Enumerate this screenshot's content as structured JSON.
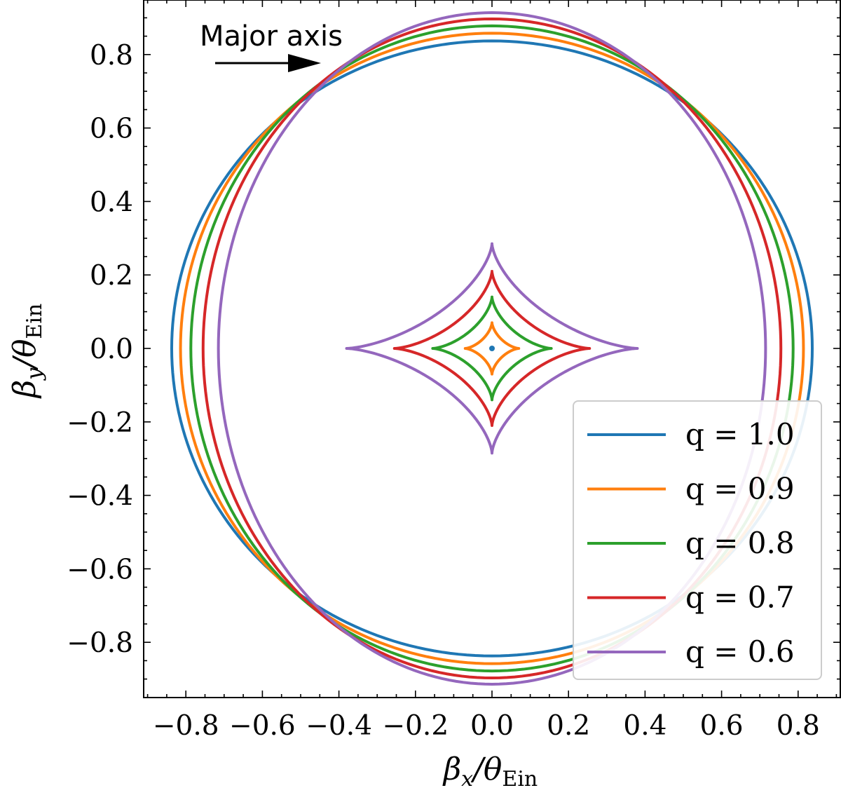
{
  "chart_data": {
    "type": "line",
    "title": "",
    "xlabel": "βx/θEin",
    "ylabel": "βy/θEin",
    "xlim": [
      -0.95,
      0.95
    ],
    "ylim": [
      -0.95,
      0.95
    ],
    "xticks": [
      "−0.8",
      "−0.6",
      "−0.4",
      "−0.2",
      "0.0",
      "0.2",
      "0.4",
      "0.6",
      "0.8"
    ],
    "yticks": [
      "−0.8",
      "−0.6",
      "−0.4",
      "−0.2",
      "0.0",
      "0.2",
      "0.4",
      "0.6",
      "0.8"
    ],
    "grid": false,
    "legend_position": "lower-right",
    "annotation": {
      "text": "Major axis",
      "arrow_direction": "right"
    },
    "series": [
      {
        "name": "q = 1.0",
        "q": 1.0,
        "color": "#1f77b4",
        "caustic": {
          "a": 0.837,
          "b": 0.837
        },
        "astroid": {
          "ax": 0.0,
          "ay": 0.0
        }
      },
      {
        "name": "q = 0.9",
        "q": 0.9,
        "color": "#ff7f0e",
        "caustic": {
          "a": 0.814,
          "b": 0.858
        },
        "astroid": {
          "ax": 0.07,
          "ay": 0.07
        }
      },
      {
        "name": "q = 0.8",
        "q": 0.8,
        "color": "#2ca02c",
        "caustic": {
          "a": 0.787,
          "b": 0.878
        },
        "astroid": {
          "ax": 0.155,
          "ay": 0.14
        }
      },
      {
        "name": "q = 0.7",
        "q": 0.7,
        "color": "#d62728",
        "caustic": {
          "a": 0.755,
          "b": 0.897
        },
        "astroid": {
          "ax": 0.255,
          "ay": 0.21
        }
      },
      {
        "name": "q = 0.6",
        "q": 0.6,
        "color": "#9467bd",
        "caustic": {
          "a": 0.715,
          "b": 0.914
        },
        "astroid": {
          "ax": 0.38,
          "ay": 0.285
        }
      }
    ]
  }
}
